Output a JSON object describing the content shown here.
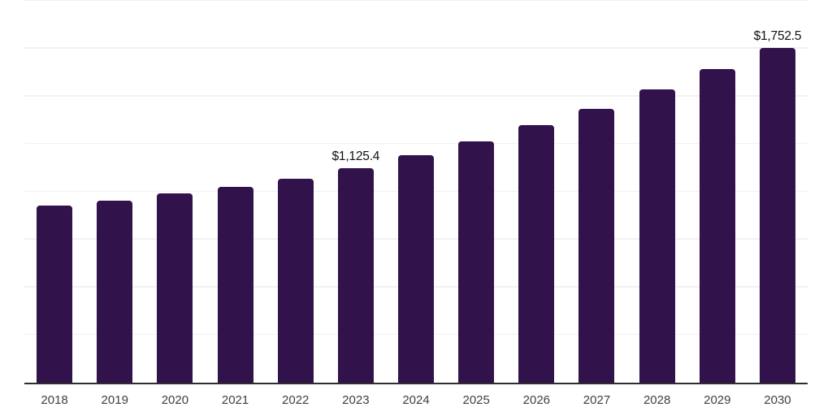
{
  "chart_data": {
    "type": "bar",
    "title": "",
    "xlabel": "",
    "ylabel": "",
    "categories": [
      "2018",
      "2019",
      "2020",
      "2021",
      "2022",
      "2023",
      "2024",
      "2025",
      "2026",
      "2027",
      "2028",
      "2029",
      "2030"
    ],
    "values": [
      928,
      955,
      992,
      1026,
      1070,
      1125.4,
      1190,
      1262,
      1347,
      1435,
      1537,
      1643,
      1752.5
    ],
    "data_labels": [
      "",
      "",
      "",
      "",
      "",
      "$1,125.4",
      "",
      "",
      "",
      "",
      "",
      "",
      "$1,752.5"
    ],
    "ylim": [
      0,
      2000
    ],
    "gridline_interval": 250,
    "grid": "horizontal",
    "y_tick_labels_visible": false,
    "legend": "none",
    "colors": {
      "bar": "#32124B",
      "grid": "#f1f1f1",
      "axis_line": "#2e2e2e",
      "tick_label": "#3f3f3f",
      "data_label": "#111111",
      "background": "#ffffff"
    }
  }
}
